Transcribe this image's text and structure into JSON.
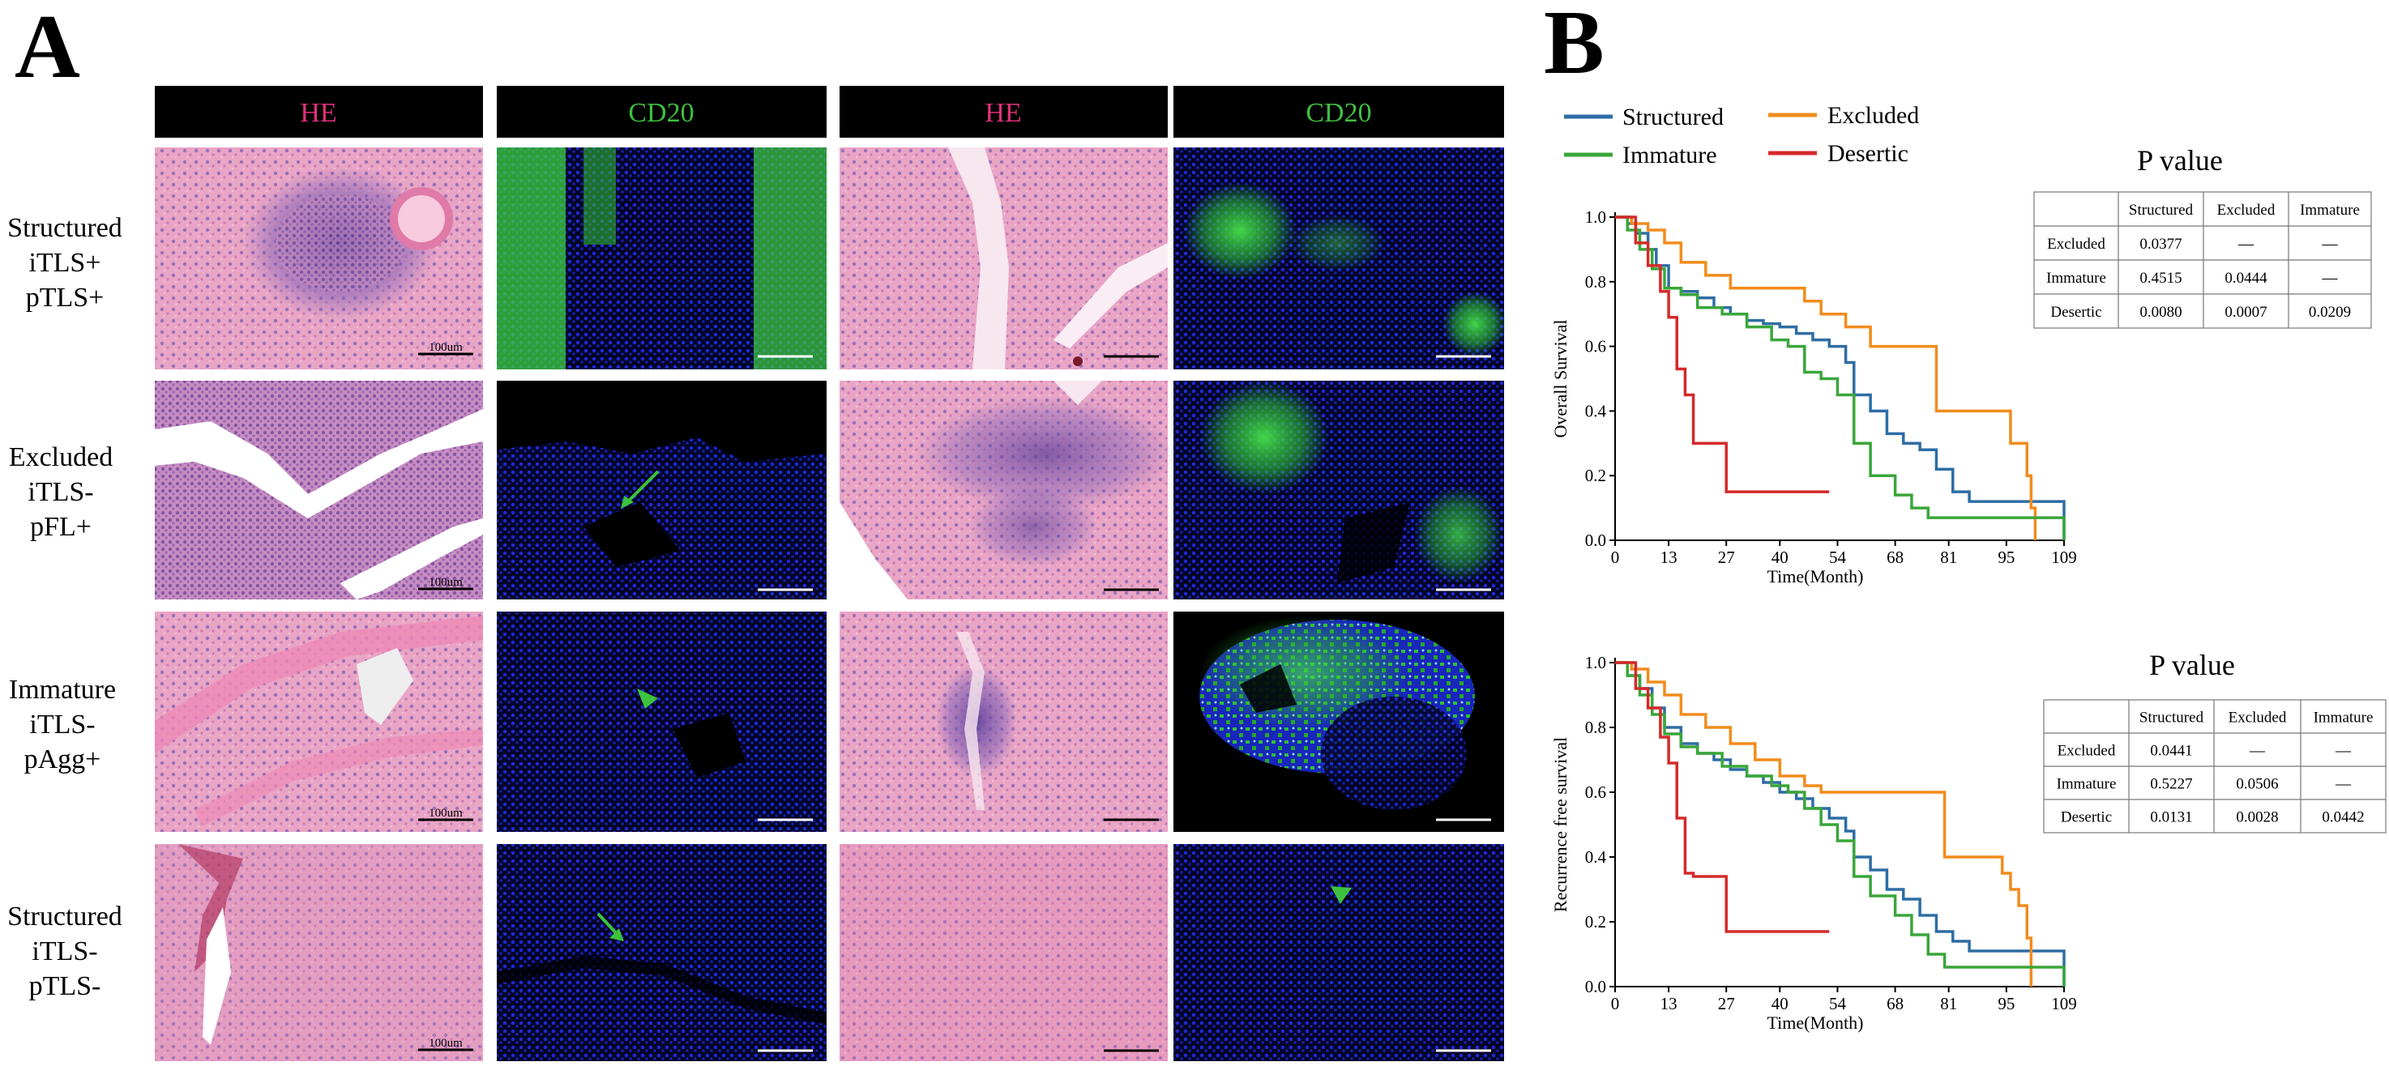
{
  "panel_a": {
    "label": "A",
    "headers": [
      {
        "text": "HE",
        "color": "#e0317a"
      },
      {
        "text": "CD20",
        "color": "#3fbf3f"
      },
      {
        "text": "HE",
        "color": "#e0317a"
      },
      {
        "text": "CD20",
        "color": "#3fbf3f"
      }
    ],
    "rows": [
      {
        "lines": [
          "Structured",
          "iTLS+",
          "pTLS+"
        ]
      },
      {
        "lines": [
          "Excluded",
          "iTLS-",
          "pFL+"
        ]
      },
      {
        "lines": [
          "Immature",
          "iTLS-",
          "pAgg+"
        ]
      },
      {
        "lines": [
          "Structured",
          "iTLS-",
          "pTLS-"
        ]
      }
    ],
    "scale_label": "100um"
  },
  "panel_b": {
    "label": "B",
    "legend": [
      {
        "name": "Structured",
        "color": "#2e6da4"
      },
      {
        "name": "Excluded",
        "color": "#f28c1c"
      },
      {
        "name": "Immature",
        "color": "#3aa63a"
      },
      {
        "name": "Desertic",
        "color": "#d42a2a"
      }
    ],
    "tables": [
      {
        "title": "P value",
        "columns": [
          "",
          "Structured",
          "Excluded",
          "Immature"
        ],
        "rows": [
          [
            "Excluded",
            "0.0377",
            "—",
            "—"
          ],
          [
            "Immature",
            "0.4515",
            "0.0444",
            "—"
          ],
          [
            "Desertic",
            "0.0080",
            "0.0007",
            "0.0209"
          ]
        ]
      },
      {
        "title": "P value",
        "columns": [
          "",
          "Structured",
          "Excluded",
          "Immature"
        ],
        "rows": [
          [
            "Excluded",
            "0.0441",
            "—",
            "—"
          ],
          [
            "Immature",
            "0.5227",
            "0.0506",
            "—"
          ],
          [
            "Desertic",
            "0.0131",
            "0.0028",
            "0.0442"
          ]
        ]
      }
    ]
  },
  "chart_data": [
    {
      "type": "line",
      "ylabel": "Overall Survival",
      "xlabel": "Time(Month)",
      "xticks": [
        0,
        13,
        27,
        40,
        54,
        68,
        81,
        95,
        109
      ],
      "yticks": [
        "0.0",
        "0.2",
        "0.4",
        "0.6",
        "0.8",
        "1.0"
      ],
      "xlim": [
        0,
        109
      ],
      "ylim": [
        0,
        1.05
      ],
      "series": [
        {
          "name": "Structured",
          "color": "#2e6da4",
          "x": [
            0,
            3,
            5,
            8,
            10,
            13,
            16,
            20,
            24,
            28,
            32,
            36,
            40,
            44,
            48,
            52,
            56,
            58,
            62,
            66,
            70,
            74,
            78,
            82,
            86,
            90,
            109
          ],
          "y": [
            1.0,
            0.98,
            0.95,
            0.9,
            0.85,
            0.78,
            0.77,
            0.75,
            0.72,
            0.7,
            0.68,
            0.67,
            0.66,
            0.64,
            0.62,
            0.6,
            0.55,
            0.45,
            0.4,
            0.33,
            0.3,
            0.28,
            0.22,
            0.15,
            0.12,
            0.12,
            0.0
          ]
        },
        {
          "name": "Excluded",
          "color": "#f28c1c",
          "x": [
            0,
            4,
            8,
            12,
            16,
            22,
            28,
            40,
            46,
            50,
            56,
            62,
            68,
            76,
            78,
            84,
            94,
            96,
            100,
            101,
            102
          ],
          "y": [
            1.0,
            0.98,
            0.96,
            0.92,
            0.86,
            0.82,
            0.78,
            0.78,
            0.74,
            0.7,
            0.66,
            0.6,
            0.6,
            0.6,
            0.4,
            0.4,
            0.4,
            0.3,
            0.2,
            0.1,
            0.0
          ]
        },
        {
          "name": "Immature",
          "color": "#3aa63a",
          "x": [
            0,
            3,
            6,
            9,
            12,
            16,
            20,
            26,
            32,
            38,
            42,
            46,
            50,
            54,
            58,
            62,
            68,
            72,
            76,
            80,
            109
          ],
          "y": [
            1.0,
            0.96,
            0.9,
            0.84,
            0.78,
            0.76,
            0.72,
            0.7,
            0.66,
            0.62,
            0.6,
            0.52,
            0.5,
            0.45,
            0.3,
            0.2,
            0.14,
            0.1,
            0.07,
            0.07,
            0.0
          ]
        },
        {
          "name": "Desertic",
          "color": "#d42a2a",
          "x": [
            0,
            5,
            8,
            11,
            13,
            15,
            17,
            19,
            21,
            27,
            52
          ],
          "y": [
            1.0,
            0.92,
            0.85,
            0.77,
            0.69,
            0.53,
            0.45,
            0.3,
            0.3,
            0.15,
            0.15
          ]
        }
      ]
    },
    {
      "type": "line",
      "ylabel": "Recurrence free survival",
      "xlabel": "Time(Month)",
      "xticks": [
        0,
        13,
        27,
        40,
        54,
        68,
        81,
        95,
        109
      ],
      "yticks": [
        "0.0",
        "0.2",
        "0.4",
        "0.6",
        "0.8",
        "1.0"
      ],
      "xlim": [
        0,
        109
      ],
      "ylim": [
        0,
        1.05
      ],
      "series": [
        {
          "name": "Structured",
          "color": "#2e6da4",
          "x": [
            0,
            3,
            6,
            9,
            12,
            16,
            20,
            24,
            28,
            32,
            36,
            40,
            44,
            48,
            52,
            56,
            58,
            62,
            66,
            70,
            74,
            78,
            82,
            86,
            90,
            109
          ],
          "y": [
            1.0,
            0.96,
            0.92,
            0.86,
            0.8,
            0.75,
            0.72,
            0.7,
            0.67,
            0.65,
            0.63,
            0.6,
            0.58,
            0.55,
            0.52,
            0.48,
            0.4,
            0.36,
            0.3,
            0.27,
            0.22,
            0.17,
            0.14,
            0.11,
            0.11,
            0.0
          ]
        },
        {
          "name": "Excluded",
          "color": "#f28c1c",
          "x": [
            0,
            4,
            8,
            12,
            16,
            22,
            28,
            34,
            40,
            46,
            50,
            56,
            68,
            78,
            80,
            92,
            94,
            96,
            98,
            100,
            101
          ],
          "y": [
            1.0,
            0.98,
            0.94,
            0.9,
            0.84,
            0.8,
            0.75,
            0.7,
            0.65,
            0.62,
            0.6,
            0.6,
            0.6,
            0.6,
            0.4,
            0.4,
            0.35,
            0.3,
            0.25,
            0.15,
            0.0
          ]
        },
        {
          "name": "Immature",
          "color": "#3aa63a",
          "x": [
            0,
            3,
            6,
            9,
            12,
            16,
            20,
            26,
            32,
            38,
            42,
            46,
            50,
            54,
            58,
            62,
            68,
            72,
            76,
            80,
            109
          ],
          "y": [
            1.0,
            0.96,
            0.9,
            0.84,
            0.78,
            0.74,
            0.72,
            0.68,
            0.65,
            0.62,
            0.6,
            0.55,
            0.5,
            0.45,
            0.34,
            0.28,
            0.22,
            0.16,
            0.1,
            0.06,
            0.0
          ]
        },
        {
          "name": "Desertic",
          "color": "#d42a2a",
          "x": [
            0,
            5,
            8,
            11,
            13,
            15,
            17,
            19,
            27,
            52
          ],
          "y": [
            1.0,
            0.92,
            0.86,
            0.77,
            0.69,
            0.52,
            0.35,
            0.34,
            0.17,
            0.17
          ]
        }
      ]
    }
  ]
}
